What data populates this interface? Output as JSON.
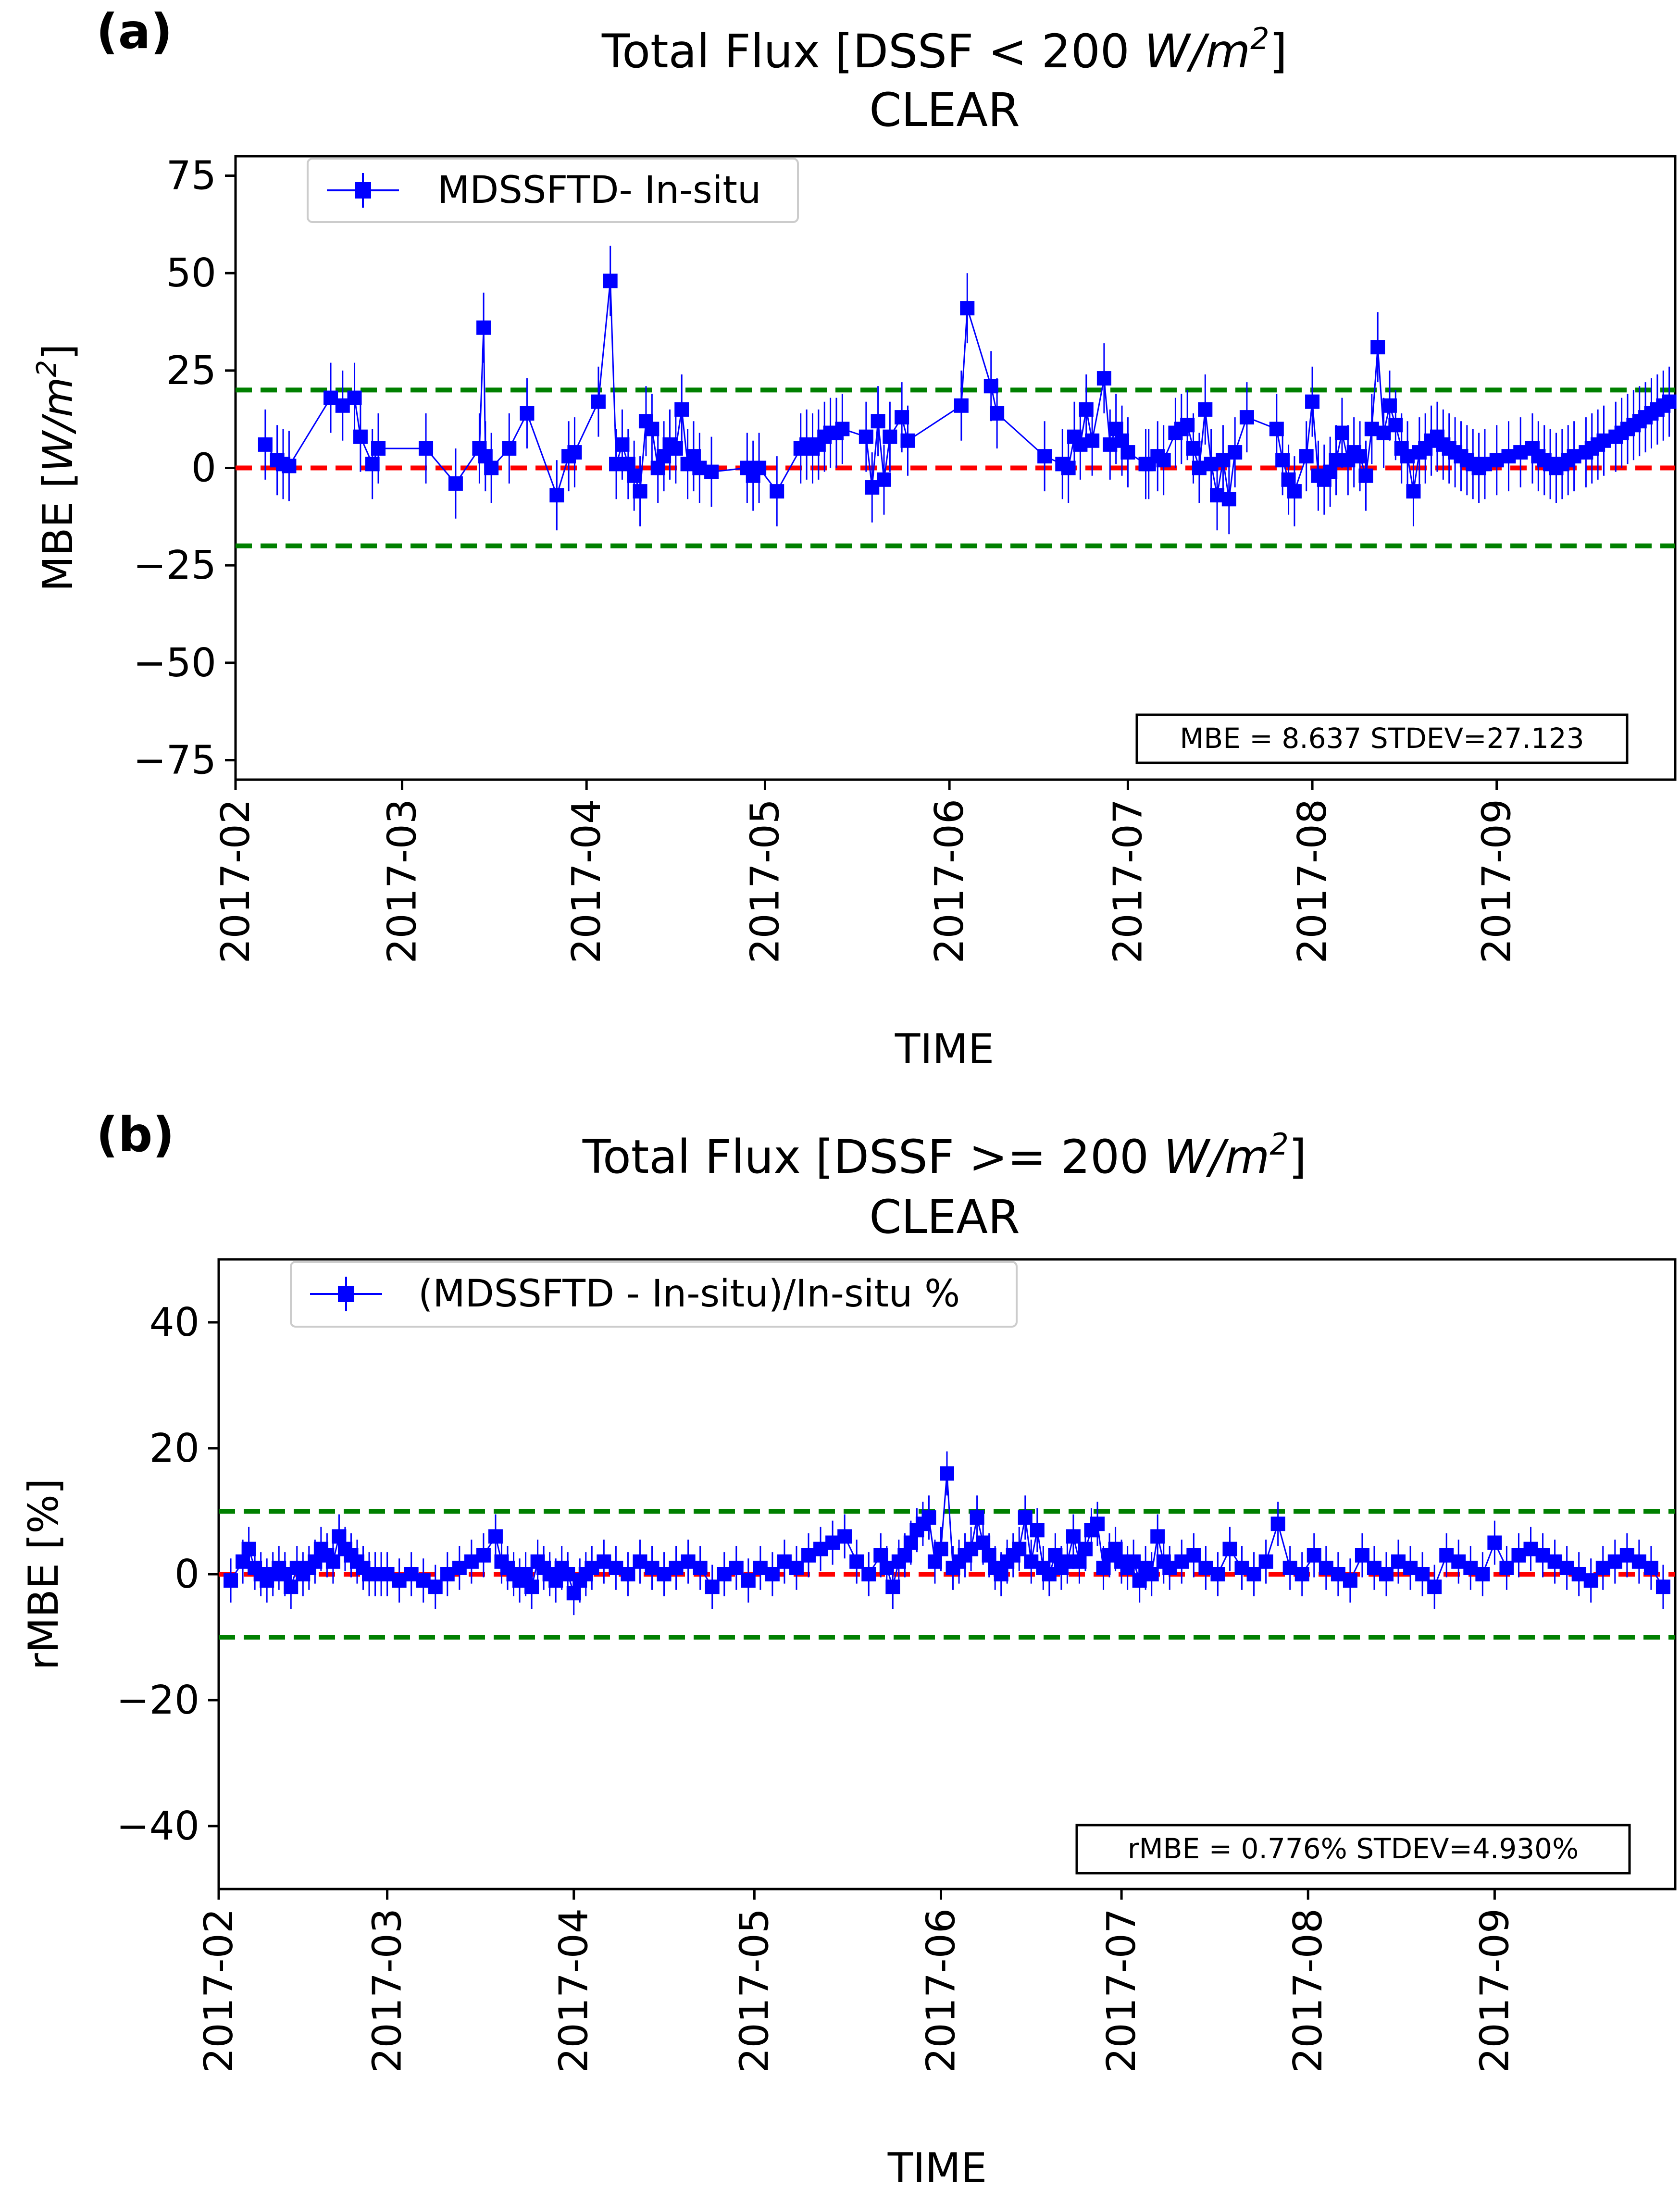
{
  "figure": {
    "panels": [
      {
        "label": "(a)",
        "title_prefix": "Total Flux  [DSSF < 200 ",
        "title_unit": "W/m",
        "title_exp": "2",
        "title_suffix": "]",
        "subtitle": "CLEAR"
      },
      {
        "label": "(b)",
        "title_prefix": "Total Flux  [DSSF >= 200 ",
        "title_unit": "W/m",
        "title_exp": "2",
        "title_suffix": "]",
        "subtitle": "CLEAR"
      }
    ]
  },
  "colors": {
    "series": "#0000ff",
    "zero_line": "#ff0000",
    "threshold": "#008000",
    "frame": "#000000"
  },
  "chart_data": [
    {
      "type": "scatter",
      "title": "Total Flux  [DSSF < 200 W/m2]",
      "subtitle": "CLEAR",
      "xlabel": "TIME",
      "ylabel_prefix": "MBE [",
      "ylabel_unit": "W/m",
      "ylabel_exp": "2",
      "ylabel_suffix": "]",
      "legend": "MDSSFTD- In-situ",
      "legend_position": "top-left",
      "stats": "MBE = 8.637  STDEV=27.123",
      "ylim": [
        -80,
        80
      ],
      "yticks": [
        75,
        50,
        25,
        0,
        -25,
        -50,
        -75
      ],
      "ytick_labels": [
        "75",
        "50",
        "25",
        "0",
        "−25",
        "−50",
        "−75"
      ],
      "xlim_day": [
        0,
        242
      ],
      "xticks_day": [
        0,
        28,
        59,
        89,
        120,
        150,
        181,
        212
      ],
      "xtick_labels": [
        "2017-02",
        "2017-03",
        "2017-04",
        "2017-05",
        "2017-06",
        "2017-07",
        "2017-08",
        "2017-09"
      ],
      "hlines": [
        {
          "y": 0,
          "style": "red-dashed"
        },
        {
          "y": 20,
          "style": "green-dashed"
        },
        {
          "y": -20,
          "style": "green-dashed"
        }
      ],
      "series": [
        {
          "name": "MDSSFTD- In-situ",
          "day": [
            5,
            7,
            8,
            9,
            16,
            18,
            20,
            21,
            23,
            24,
            32,
            37,
            41,
            41.7,
            42,
            43,
            46,
            49,
            54,
            56,
            57,
            61,
            63,
            64,
            65,
            66,
            67,
            68,
            69,
            70,
            71,
            72,
            73,
            74,
            75,
            76,
            77,
            78,
            80,
            86,
            87,
            88,
            91,
            95,
            96,
            97,
            98,
            99,
            100,
            101,
            102,
            106,
            107,
            108,
            109,
            110,
            112,
            113,
            122,
            123,
            127,
            128,
            136,
            139,
            140,
            141,
            142,
            143,
            144,
            146,
            147,
            148,
            149,
            150,
            153,
            153.5,
            155,
            156,
            158,
            159,
            160,
            161,
            162,
            163,
            164,
            165,
            166,
            167,
            168,
            170,
            175,
            176,
            177,
            178,
            180,
            181,
            182,
            183,
            184,
            185,
            186,
            187,
            188,
            189,
            190,
            191,
            192,
            193,
            194,
            195,
            196,
            197,
            198,
            199,
            200,
            201,
            202,
            203,
            204,
            205,
            206,
            207,
            208,
            209,
            210,
            212,
            214,
            216,
            218,
            219,
            220,
            221,
            222,
            223,
            224,
            225,
            227,
            228,
            229,
            230,
            232,
            233,
            234,
            235,
            236,
            237,
            238,
            239,
            240,
            241
          ],
          "y": [
            6,
            2,
            1,
            0.5,
            18,
            16,
            18,
            8,
            1,
            5,
            5,
            -4,
            5,
            36,
            3,
            0,
            5,
            14,
            -7,
            3,
            4,
            17,
            48,
            1,
            6,
            1,
            -2,
            -6,
            12,
            10,
            0,
            3,
            6,
            5,
            15,
            1,
            3,
            0,
            -1,
            0,
            -2,
            0,
            -6,
            5,
            6,
            5,
            6,
            8,
            9,
            9,
            10,
            8,
            -5,
            12,
            -3,
            8,
            13,
            7,
            16,
            41,
            21,
            14,
            3,
            1,
            0,
            8,
            6,
            15,
            7,
            23,
            6,
            10,
            7,
            4,
            1,
            1,
            3,
            2,
            9,
            10,
            11,
            5,
            0,
            15,
            1,
            -7,
            2,
            -8,
            4,
            13,
            10,
            2,
            -3,
            -6,
            3,
            17,
            -2,
            -3,
            -1,
            2,
            9,
            2,
            4,
            3,
            -2,
            10,
            31,
            9,
            16,
            11,
            5,
            3,
            -6,
            4,
            5,
            7,
            8,
            6,
            5,
            4,
            3,
            2,
            1,
            0,
            1,
            2,
            3,
            4,
            5,
            3,
            2,
            1,
            0,
            1,
            2,
            3,
            4,
            5,
            6,
            7,
            8,
            9,
            10,
            11,
            12,
            13,
            14,
            15,
            16,
            17
          ]
        }
      ]
    },
    {
      "type": "scatter",
      "title": "Total Flux  [DSSF >= 200 W/m2]",
      "subtitle": "CLEAR",
      "xlabel": "TIME",
      "ylabel": "rMBE [%]",
      "legend": "(MDSSFTD - In-situ)/In-situ %",
      "legend_position": "top-left",
      "stats": "rMBE = 0.776%   STDEV=4.930%",
      "ylim": [
        -50,
        50
      ],
      "yticks": [
        40,
        20,
        0,
        -20,
        -40
      ],
      "ytick_labels": [
        "40",
        "20",
        "0",
        "−20",
        "−40"
      ],
      "xlim_day": [
        0,
        242
      ],
      "xticks_day": [
        0,
        28,
        59,
        89,
        120,
        150,
        181,
        212
      ],
      "xtick_labels": [
        "2017-02",
        "2017-03",
        "2017-04",
        "2017-05",
        "2017-06",
        "2017-07",
        "2017-08",
        "2017-09"
      ],
      "hlines": [
        {
          "y": 0,
          "style": "red-dashed"
        },
        {
          "y": 10,
          "style": "green-dashed"
        },
        {
          "y": -10,
          "style": "green-dashed"
        }
      ],
      "series": [
        {
          "name": "(MDSSFTD - In-situ)/In-situ %",
          "day": [
            2,
            4,
            5,
            6,
            7,
            8,
            9,
            10,
            11,
            12,
            13,
            14,
            15,
            16,
            17,
            18,
            19,
            20,
            21,
            22,
            23,
            24,
            25,
            26,
            27,
            28,
            30,
            32,
            34,
            36,
            38,
            40,
            42,
            44,
            46,
            47,
            48,
            49,
            50,
            51,
            52,
            53,
            54,
            55,
            56,
            57,
            58,
            59,
            60,
            61,
            62,
            64,
            66,
            68,
            70,
            72,
            74,
            76,
            78,
            80,
            82,
            84,
            86,
            88,
            90,
            92,
            94,
            96,
            98,
            100,
            102,
            104,
            106,
            108,
            110,
            111,
            112,
            113,
            114,
            115,
            116,
            117,
            118,
            119,
            120,
            121,
            122,
            123,
            124,
            125,
            126,
            127,
            128,
            129,
            130,
            131,
            132,
            133,
            134,
            135,
            136,
            137,
            138,
            139,
            140,
            141,
            142,
            143,
            144,
            145,
            146,
            147,
            148,
            149,
            150,
            151,
            152,
            153,
            154,
            155,
            156,
            157,
            158,
            160,
            162,
            164,
            166,
            168,
            170,
            172,
            174,
            176,
            178,
            180,
            182,
            184,
            186,
            188,
            190,
            192,
            194,
            196,
            198,
            200,
            202,
            204,
            206,
            208,
            210,
            212,
            214,
            216,
            218,
            220,
            222,
            224,
            226,
            228,
            230,
            232,
            234,
            236,
            238,
            240
          ],
          "y": [
            -1,
            2,
            4,
            1,
            0,
            -1,
            0,
            1,
            0,
            -2,
            1,
            0,
            1,
            2,
            4,
            3,
            2,
            6,
            4,
            3,
            2,
            1,
            0,
            0,
            0,
            0,
            -1,
            0,
            -1,
            -2,
            0,
            1,
            2,
            3,
            6,
            2,
            1,
            0,
            -1,
            0,
            -2,
            2,
            1,
            0,
            -1,
            1,
            0,
            -3,
            -1,
            0,
            1,
            2,
            1,
            0,
            2,
            1,
            0,
            1,
            2,
            1,
            -2,
            0,
            1,
            -1,
            1,
            0,
            2,
            1,
            3,
            4,
            5,
            6,
            2,
            0,
            3,
            1,
            -2,
            2,
            3,
            5,
            7,
            8,
            9,
            2,
            4,
            16,
            1,
            2,
            3,
            4,
            9,
            5,
            3,
            1,
            0,
            2,
            3,
            4,
            9,
            2,
            7,
            1,
            0,
            3,
            1,
            2,
            6,
            2,
            4,
            7,
            8,
            1,
            3,
            4,
            2,
            1,
            2,
            -1,
            1,
            0,
            6,
            2,
            1,
            2,
            3,
            1,
            0,
            4,
            1,
            0,
            2,
            8,
            1,
            0,
            3,
            1,
            0,
            -1,
            3,
            1,
            0,
            2,
            1,
            0,
            -2,
            3,
            2,
            1,
            0,
            5,
            1,
            3,
            4,
            3,
            2,
            1,
            0,
            -1,
            1,
            2,
            3,
            2,
            1,
            -2
          ]
        }
      ]
    }
  ]
}
